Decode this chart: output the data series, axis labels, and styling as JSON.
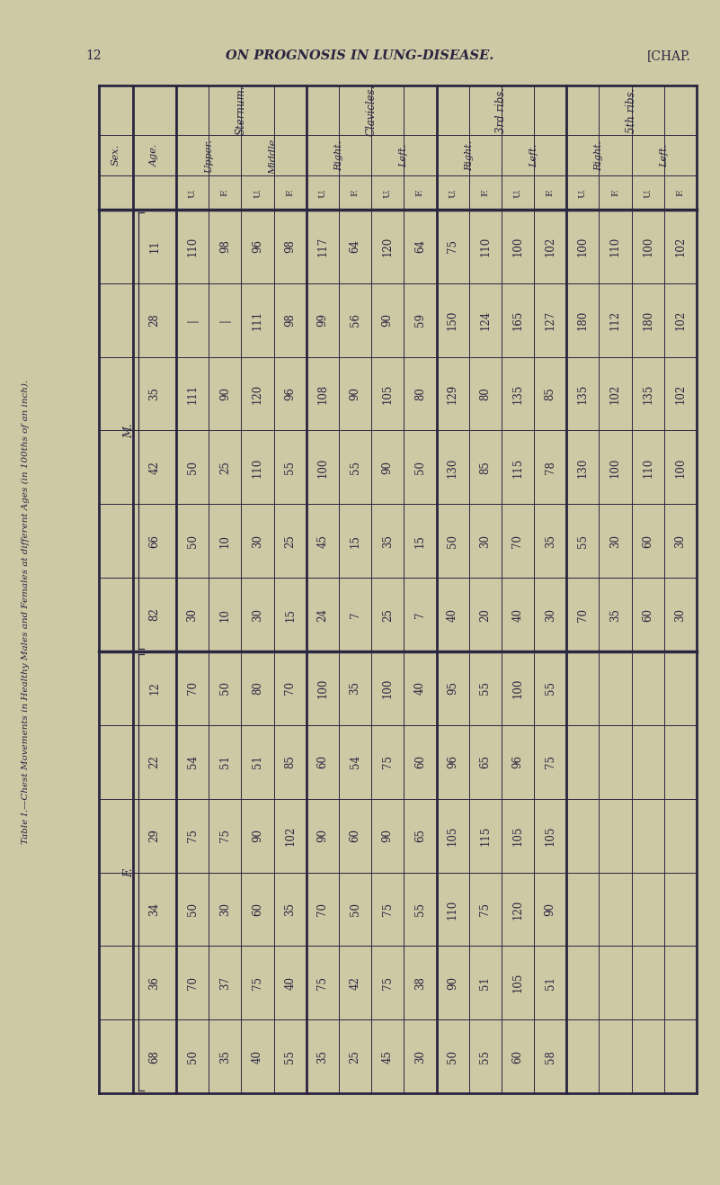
{
  "page_header_num": "12",
  "page_header_title": "ON PROGNOSIS IN LUNG-DISEASE.",
  "page_header_chap": "[CHAP.",
  "title": "Table I.—Chest Movements in Healthy Males and Females at different Ages (in 100ths of an inch).",
  "background_color": "#cdc9a5",
  "text_color": "#2a2540",
  "ages_M": [
    "11",
    "28",
    "35",
    "42",
    "66",
    "82"
  ],
  "ages_F": [
    "12",
    "22",
    "29",
    "34",
    "36",
    "68"
  ],
  "data_M": [
    [
      "110",
      "98",
      "96",
      "98",
      "117",
      "64",
      "120",
      "64",
      "75",
      "110",
      "100",
      "102",
      "100",
      "110",
      "100",
      "102"
    ],
    [
      "-",
      "-",
      "111",
      "98",
      "99",
      "56",
      "90",
      "59",
      "150",
      "124",
      "165",
      "127",
      "180",
      "112",
      "180",
      "102"
    ],
    [
      "111",
      "90",
      "120",
      "96",
      "108",
      "90",
      "105",
      "80",
      "129",
      "80",
      "135",
      "85",
      "135",
      "102",
      "135",
      "102"
    ],
    [
      "50",
      "25",
      "110",
      "55",
      "100",
      "55",
      "90",
      "50",
      "130",
      "85",
      "115",
      "78",
      "130",
      "100",
      "110",
      "100"
    ],
    [
      "50",
      "10",
      "30",
      "25",
      "45",
      "15",
      "35",
      "15",
      "50",
      "30",
      "70",
      "35",
      "55",
      "30",
      "60",
      "30"
    ],
    [
      "30",
      "10",
      "30",
      "15",
      "24",
      "7",
      "25",
      "7",
      "40",
      "20",
      "40",
      "30",
      "70",
      "35",
      "60",
      "30"
    ]
  ],
  "data_F": [
    [
      "70",
      "50",
      "80",
      "70",
      "100",
      "35",
      "100",
      "40",
      "95",
      "55",
      "100",
      "55",
      "",
      "",
      "",
      ""
    ],
    [
      "54",
      "51",
      "51",
      "85",
      "60",
      "54",
      "75",
      "60",
      "96",
      "65",
      "96",
      "75",
      "",
      "",
      "",
      ""
    ],
    [
      "75",
      "75",
      "90",
      "102",
      "90",
      "60",
      "90",
      "65",
      "105",
      "115",
      "105",
      "105",
      "",
      "",
      "",
      ""
    ],
    [
      "50",
      "30",
      "60",
      "35",
      "70",
      "50",
      "75",
      "55",
      "110",
      "75",
      "120",
      "90",
      "",
      "",
      "",
      ""
    ],
    [
      "70",
      "37",
      "75",
      "40",
      "75",
      "42",
      "75",
      "38",
      "90",
      "51",
      "105",
      "51",
      "",
      "",
      "",
      ""
    ],
    [
      "50",
      "35",
      "40",
      "55",
      "35",
      "25",
      "45",
      "30",
      "50",
      "55",
      "60",
      "58",
      "",
      "",
      "",
      ""
    ]
  ],
  "col_structure": [
    {
      "group": "Sternum.",
      "subgroups": [
        {
          "name": "Upper.",
          "cols": [
            "U.",
            "F."
          ]
        },
        {
          "name": "Middle.",
          "cols": [
            "U.",
            "F."
          ]
        }
      ]
    },
    {
      "group": "Clavicles.",
      "subgroups": [
        {
          "name": "Right.",
          "cols": [
            "U.",
            "F."
          ]
        },
        {
          "name": "Left.",
          "cols": [
            "U.",
            "F."
          ]
        }
      ]
    },
    {
      "group": "3rd ribs.",
      "subgroups": [
        {
          "name": "Right.",
          "cols": [
            "U.",
            "F."
          ]
        },
        {
          "name": "Left.",
          "cols": [
            "U.",
            "F."
          ]
        }
      ]
    },
    {
      "group": "5th ribs.",
      "subgroups": [
        {
          "name": "Right.",
          "cols": [
            "U.",
            "F."
          ]
        },
        {
          "name": "Left.",
          "cols": [
            "U.",
            "F."
          ]
        }
      ]
    }
  ]
}
